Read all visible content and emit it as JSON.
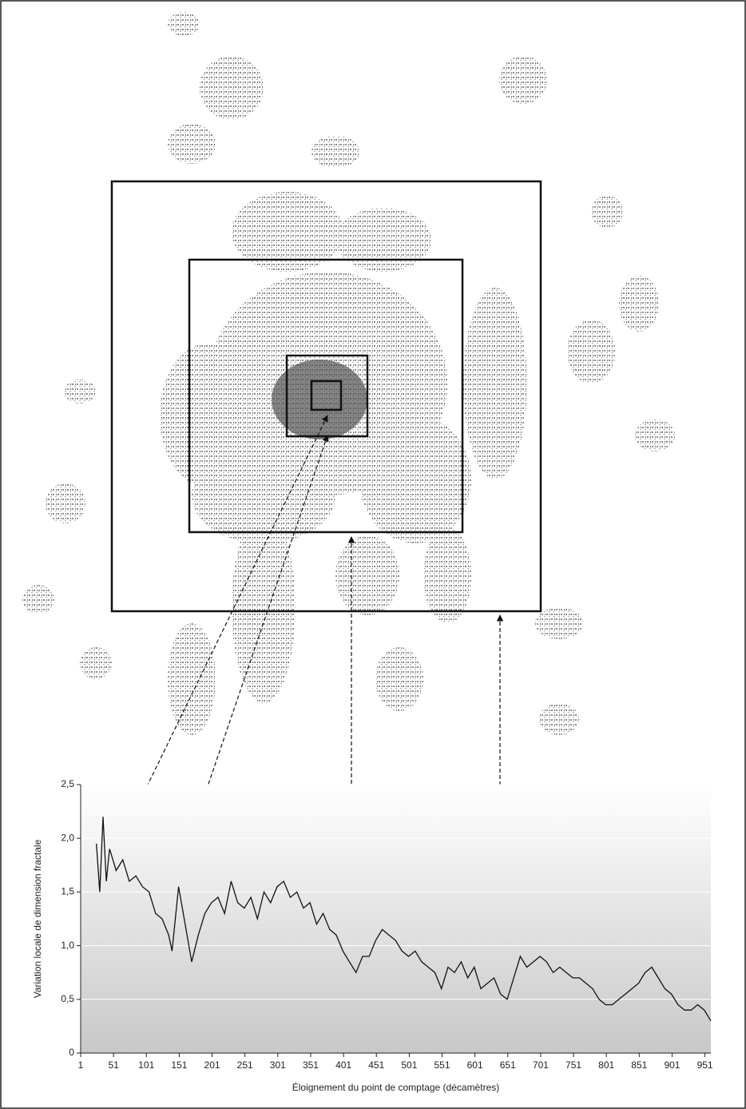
{
  "chart_data": {
    "type": "line",
    "x_label": "Éloignement du point de comptage (décamètres)",
    "y_label": "Variation locale de dimension fractale",
    "x": [
      25,
      30,
      35,
      40,
      45,
      55,
      65,
      75,
      85,
      95,
      105,
      115,
      125,
      135,
      140,
      150,
      160,
      170,
      180,
      190,
      200,
      210,
      220,
      230,
      240,
      250,
      260,
      270,
      280,
      290,
      300,
      310,
      320,
      330,
      340,
      350,
      360,
      370,
      380,
      390,
      400,
      410,
      420,
      430,
      440,
      450,
      460,
      470,
      480,
      490,
      500,
      510,
      520,
      530,
      540,
      550,
      560,
      570,
      580,
      590,
      600,
      610,
      620,
      630,
      640,
      650,
      660,
      670,
      680,
      690,
      700,
      710,
      720,
      730,
      740,
      750,
      760,
      770,
      780,
      790,
      800,
      810,
      820,
      830,
      840,
      850,
      860,
      870,
      880,
      890,
      900,
      910,
      920,
      930,
      940,
      950,
      960
    ],
    "values": [
      1.95,
      1.5,
      2.2,
      1.6,
      1.9,
      1.7,
      1.8,
      1.6,
      1.65,
      1.55,
      1.5,
      1.3,
      1.25,
      1.1,
      0.95,
      1.55,
      1.2,
      0.85,
      1.1,
      1.3,
      1.4,
      1.45,
      1.3,
      1.6,
      1.4,
      1.35,
      1.45,
      1.25,
      1.5,
      1.4,
      1.55,
      1.6,
      1.45,
      1.5,
      1.35,
      1.4,
      1.2,
      1.3,
      1.15,
      1.1,
      0.95,
      0.85,
      0.75,
      0.9,
      0.9,
      1.05,
      1.15,
      1.1,
      1.05,
      0.95,
      0.9,
      0.95,
      0.85,
      0.8,
      0.75,
      0.6,
      0.8,
      0.75,
      0.85,
      0.7,
      0.8,
      0.6,
      0.65,
      0.7,
      0.55,
      0.5,
      0.7,
      0.9,
      0.8,
      0.85,
      0.9,
      0.85,
      0.75,
      0.8,
      0.75,
      0.7,
      0.7,
      0.65,
      0.6,
      0.5,
      0.45,
      0.45,
      0.5,
      0.55,
      0.6,
      0.65,
      0.75,
      0.8,
      0.7,
      0.6,
      0.55,
      0.45,
      0.4,
      0.4,
      0.45,
      0.4,
      0.3
    ],
    "color": "#111111",
    "xlim": [
      1,
      960
    ],
    "ylim": [
      0,
      2.5
    ],
    "xticks": [
      1,
      51,
      101,
      151,
      201,
      251,
      301,
      351,
      401,
      451,
      501,
      551,
      601,
      651,
      701,
      751,
      801,
      851,
      901,
      951
    ],
    "yticks": [
      0,
      {
        "value": 0.5,
        "label": "0,5"
      },
      {
        "value": 1,
        "label": "1,0"
      },
      {
        "value": 1.5,
        "label": "1,5"
      },
      {
        "value": 2,
        "label": "2,0"
      },
      {
        "value": 2.5,
        "label": "2,5"
      }
    ],
    "grid": true
  }
}
